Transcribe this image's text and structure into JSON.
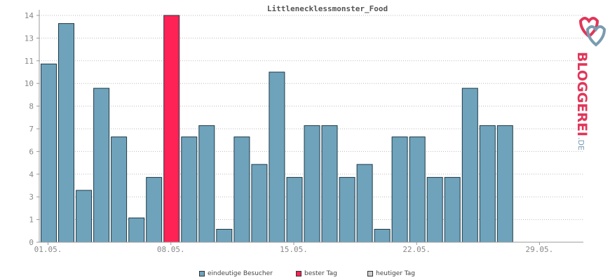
{
  "chart_data": {
    "type": "bar",
    "title": "Littlenecklessmonster_Food",
    "y_tick_labels": [
      "0",
      "1",
      "3",
      "4",
      "6",
      "7",
      "8",
      "10",
      "11",
      "13",
      "14"
    ],
    "x_tick_labels": [
      "01.05.",
      "08.05.",
      "15.05.",
      "22.05.",
      "29.05."
    ],
    "x_tick_day_index": [
      0,
      7,
      14,
      21,
      28
    ],
    "day_count": 31,
    "max_value": 14,
    "values": [
      11,
      13.5,
      3.2,
      9.5,
      6.5,
      1.5,
      4,
      14,
      6.5,
      7.2,
      0.8,
      6.5,
      4.8,
      10.5,
      4,
      7.2,
      7.2,
      4,
      4.8,
      0.8,
      6.5,
      6.5,
      4,
      4,
      9.5,
      7.2,
      7.2
    ],
    "best_day_index": 7,
    "grid": true,
    "series": [
      {
        "name": "eindeutige Besucher",
        "color": "#6fa3bb"
      },
      {
        "name": "bester Tag",
        "color": "#ff2255"
      },
      {
        "name": "heutiger Tag",
        "color": "#cccccc"
      }
    ]
  },
  "logo": {
    "text": "BLOGGEREI",
    "suffix": ".DE"
  }
}
